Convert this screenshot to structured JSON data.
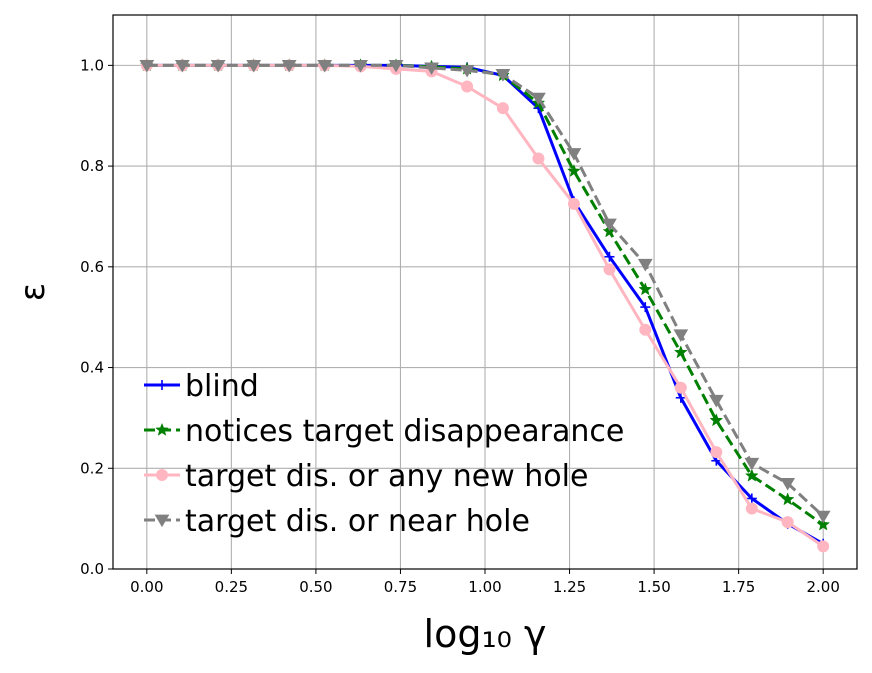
{
  "chart_data": {
    "type": "line",
    "xlabel": "log₁₀ γ",
    "ylabel": "ε",
    "xlim": [
      -0.1,
      2.1
    ],
    "ylim": [
      0.0,
      1.1
    ],
    "xticks": [
      0.0,
      0.25,
      0.5,
      0.75,
      1.0,
      1.25,
      1.5,
      1.75,
      2.0
    ],
    "xtick_labels": [
      "0.00",
      "0.25",
      "0.50",
      "0.75",
      "1.00",
      "1.25",
      "1.50",
      "1.75",
      "2.00"
    ],
    "yticks": [
      0.0,
      0.2,
      0.4,
      0.6,
      0.8,
      1.0
    ],
    "ytick_labels": [
      "0.0",
      "0.2",
      "0.4",
      "0.6",
      "0.8",
      "1.0"
    ],
    "grid": true,
    "legend_position": "lower-left",
    "x": [
      0.0,
      0.105,
      0.211,
      0.316,
      0.421,
      0.526,
      0.632,
      0.737,
      0.842,
      0.947,
      1.053,
      1.158,
      1.263,
      1.368,
      1.474,
      1.579,
      1.684,
      1.789,
      1.895,
      2.0
    ],
    "series": [
      {
        "name": "blind",
        "color": "#0000ff",
        "dash": "solid",
        "marker": "plus",
        "values": [
          1.0,
          1.0,
          1.0,
          1.0,
          1.0,
          1.0,
          1.0,
          1.0,
          0.998,
          0.996,
          0.98,
          0.915,
          0.73,
          0.62,
          0.52,
          0.34,
          0.215,
          0.14,
          0.09,
          0.05
        ]
      },
      {
        "name": "notices target disappearance",
        "color": "#008000",
        "dash": "dashed",
        "marker": "star",
        "values": [
          1.0,
          1.0,
          1.0,
          1.0,
          1.0,
          1.0,
          1.0,
          1.0,
          0.997,
          0.993,
          0.98,
          0.925,
          0.79,
          0.67,
          0.555,
          0.43,
          0.295,
          0.185,
          0.138,
          0.088
        ]
      },
      {
        "name": "target dis. or any new hole",
        "color": "#ffb6c1",
        "dash": "solid",
        "marker": "circle",
        "values": [
          1.0,
          1.0,
          1.0,
          1.0,
          1.0,
          1.0,
          0.998,
          0.993,
          0.988,
          0.958,
          0.915,
          0.815,
          0.725,
          0.595,
          0.475,
          0.36,
          0.232,
          0.12,
          0.093,
          0.045
        ]
      },
      {
        "name": "target dis. or near hole",
        "color": "#808080",
        "dash": "dashed",
        "marker": "triangle-down",
        "values": [
          1.0,
          1.0,
          1.0,
          1.0,
          1.0,
          1.0,
          1.0,
          1.0,
          0.995,
          0.99,
          0.982,
          0.935,
          0.825,
          0.685,
          0.605,
          0.465,
          0.335,
          0.21,
          0.17,
          0.105
        ]
      }
    ]
  }
}
